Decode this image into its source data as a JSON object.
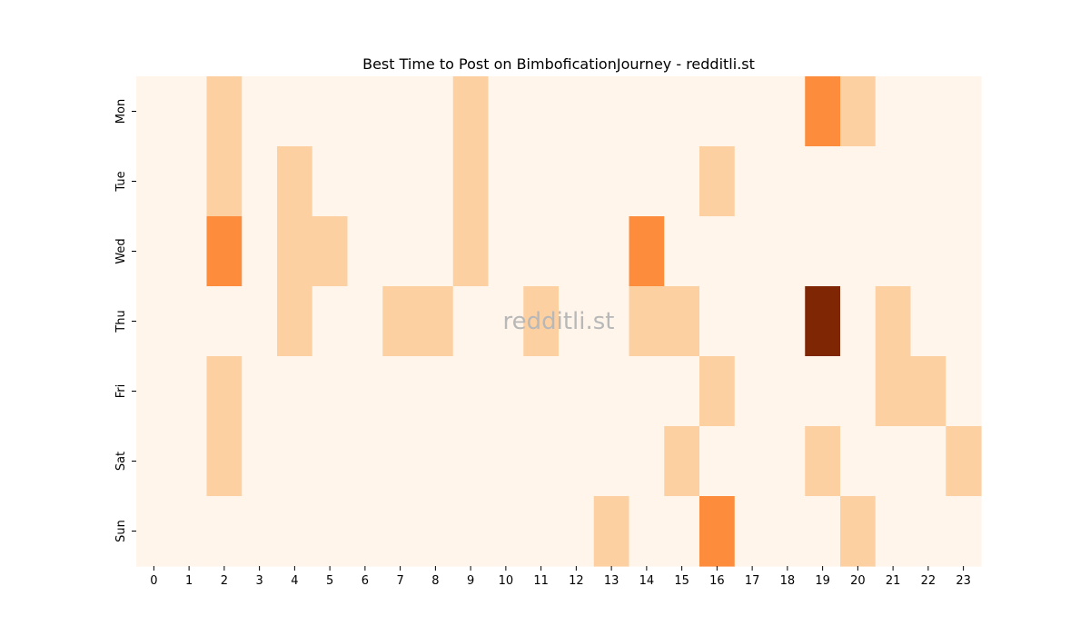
{
  "chart_data": {
    "type": "heatmap",
    "title": "Best Time to Post on BimboficationJourney - redditli.st",
    "watermark": "redditli.st",
    "xlabel": "",
    "ylabel": "",
    "x_categories": [
      "0",
      "1",
      "2",
      "3",
      "4",
      "5",
      "6",
      "7",
      "8",
      "9",
      "10",
      "11",
      "12",
      "13",
      "14",
      "15",
      "16",
      "17",
      "18",
      "19",
      "20",
      "21",
      "22",
      "23"
    ],
    "y_categories": [
      "Mon",
      "Tue",
      "Wed",
      "Thu",
      "Fri",
      "Sat",
      "Sun"
    ],
    "values": [
      [
        0,
        0,
        1,
        0,
        0,
        0,
        0,
        0,
        0,
        1,
        0,
        0,
        0,
        0,
        0,
        0,
        0,
        0,
        0,
        2,
        1,
        0,
        0,
        0
      ],
      [
        0,
        0,
        1,
        0,
        1,
        0,
        0,
        0,
        0,
        1,
        0,
        0,
        0,
        0,
        0,
        0,
        1,
        0,
        0,
        0,
        0,
        0,
        0,
        0
      ],
      [
        0,
        0,
        2,
        0,
        1,
        1,
        0,
        0,
        0,
        1,
        0,
        0,
        0,
        0,
        2,
        0,
        0,
        0,
        0,
        0,
        0,
        0,
        0,
        0
      ],
      [
        0,
        0,
        0,
        0,
        1,
        0,
        0,
        1,
        1,
        0,
        0,
        1,
        0,
        0,
        1,
        1,
        0,
        0,
        0,
        4,
        0,
        1,
        0,
        0
      ],
      [
        0,
        0,
        1,
        0,
        0,
        0,
        0,
        0,
        0,
        0,
        0,
        0,
        0,
        0,
        0,
        0,
        1,
        0,
        0,
        0,
        0,
        1,
        1,
        0
      ],
      [
        0,
        0,
        1,
        0,
        0,
        0,
        0,
        0,
        0,
        0,
        0,
        0,
        0,
        0,
        0,
        1,
        0,
        0,
        0,
        1,
        0,
        0,
        0,
        1
      ],
      [
        0,
        0,
        0,
        0,
        0,
        0,
        0,
        0,
        0,
        0,
        0,
        0,
        0,
        1,
        0,
        0,
        2,
        0,
        0,
        0,
        1,
        0,
        0,
        0
      ]
    ],
    "colormap": "Oranges",
    "colors": {
      "0": "#fff5eb",
      "1": "#fdd0a2",
      "2": "#fd8d3c",
      "4": "#7f2704"
    },
    "colorbar": false,
    "grid": false
  }
}
